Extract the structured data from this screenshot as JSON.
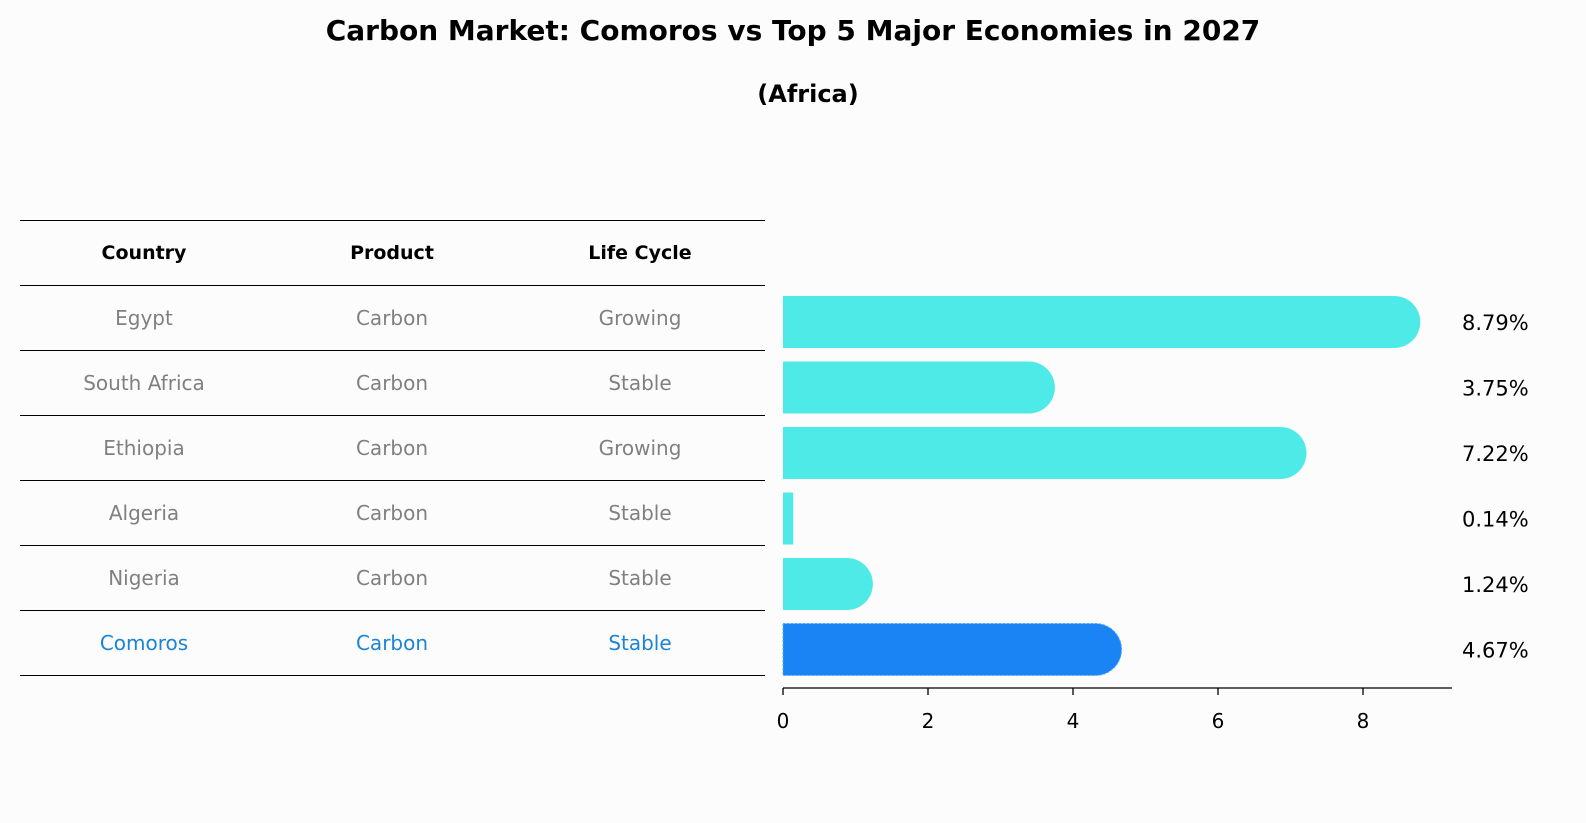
{
  "chart_data": {
    "type": "bar",
    "orientation": "horizontal",
    "title": "Carbon Market: Comoros vs Top 5 Major Economies in 2027",
    "subtitle": "(Africa)",
    "table": {
      "headers": [
        "Country",
        "Product",
        "Life Cycle"
      ],
      "rows": [
        {
          "country": "Egypt",
          "product": "Carbon",
          "life_cycle": "Growing",
          "highlight": false
        },
        {
          "country": "South Africa",
          "product": "Carbon",
          "life_cycle": "Stable",
          "highlight": false
        },
        {
          "country": "Ethiopia",
          "product": "Carbon",
          "life_cycle": "Growing",
          "highlight": false
        },
        {
          "country": "Algeria",
          "product": "Carbon",
          "life_cycle": "Stable",
          "highlight": false
        },
        {
          "country": "Nigeria",
          "product": "Carbon",
          "life_cycle": "Stable",
          "highlight": false
        },
        {
          "country": "Comoros",
          "product": "Carbon",
          "life_cycle": "Stable",
          "highlight": true
        }
      ]
    },
    "categories": [
      "Egypt",
      "South Africa",
      "Ethiopia",
      "Algeria",
      "Nigeria",
      "Comoros"
    ],
    "values": [
      8.79,
      3.75,
      7.22,
      0.14,
      1.24,
      4.67
    ],
    "value_labels": [
      "8.79%",
      "3.75%",
      "7.22%",
      "0.14%",
      "1.24%",
      "4.67%"
    ],
    "xlim": [
      0,
      9.25
    ],
    "xticks": [
      0,
      2,
      4,
      6,
      8
    ],
    "colors": {
      "bar": "#4eeae8",
      "highlight": "#1a84f5",
      "muted_text": "#808080",
      "highlight_text": "#1a84d8"
    }
  }
}
